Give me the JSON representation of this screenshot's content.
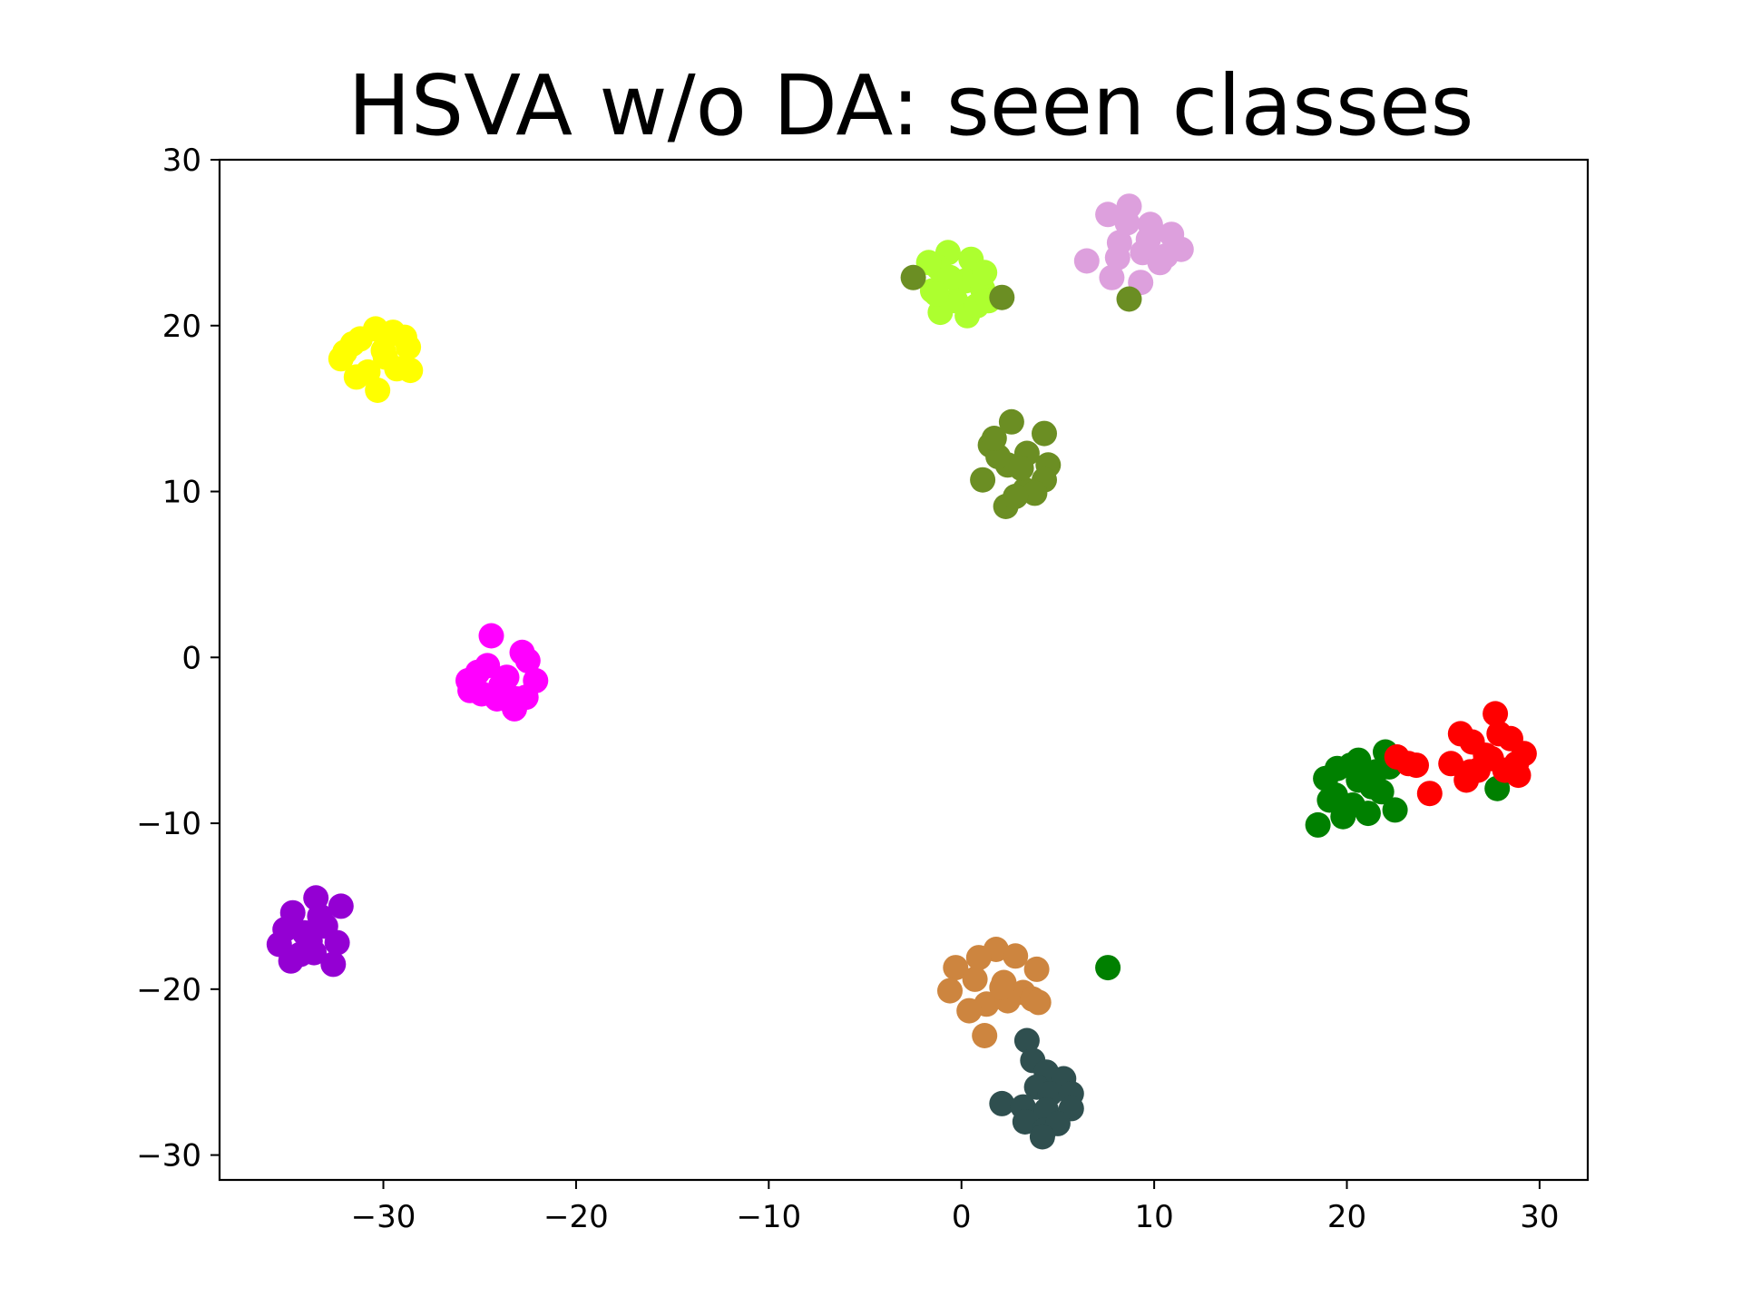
{
  "chart_data": {
    "type": "scatter",
    "title": "HSVA w/o DA: seen classes",
    "xlabel": "",
    "ylabel": "",
    "xlim": [
      -38.5,
      32.5
    ],
    "ylim": [
      -31.5,
      30
    ],
    "xticks": [
      -30,
      -20,
      -10,
      0,
      10,
      20,
      30
    ],
    "yticks": [
      30,
      20,
      10,
      0,
      -10,
      -20,
      -30
    ],
    "xtick_labels": [
      "−30",
      "−20",
      "−10",
      "0",
      "10",
      "20",
      "30"
    ],
    "ytick_labels": [
      "30",
      "20",
      "10",
      "0",
      "−10",
      "−20",
      "−30"
    ],
    "grid": false,
    "legend": "none",
    "series": [
      {
        "color": "#ffff00",
        "points": [
          [
            -30,
            18.5
          ],
          [
            -31.2,
            19.2
          ],
          [
            -29.5,
            19.6
          ],
          [
            -32.2,
            18
          ],
          [
            -28.7,
            18.7
          ],
          [
            -30.8,
            17.2
          ],
          [
            -29.3,
            17.4
          ],
          [
            -31.6,
            18.9
          ],
          [
            -30.4,
            19.8
          ],
          [
            -30.3,
            16.1
          ],
          [
            -28.6,
            17.3
          ],
          [
            -31.4,
            16.9
          ],
          [
            -29.9,
            18.1
          ],
          [
            -32,
            18.4
          ],
          [
            -28.9,
            19.3
          ]
        ]
      },
      {
        "color": "#ff00ff",
        "points": [
          [
            -24.4,
            1.3
          ],
          [
            -23.6,
            -1.2
          ],
          [
            -24.6,
            -0.5
          ],
          [
            -22.5,
            -0.2
          ],
          [
            -25.6,
            -1.4
          ],
          [
            -23.1,
            -2.5
          ],
          [
            -22.1,
            -1.4
          ],
          [
            -24.1,
            -2.5
          ],
          [
            -25.1,
            -0.9
          ],
          [
            -22.8,
            0.3
          ],
          [
            -23.2,
            -3.1
          ],
          [
            -24.9,
            -2.2
          ],
          [
            -23.9,
            -1.7
          ],
          [
            -22.6,
            -2.4
          ],
          [
            -25.5,
            -2
          ]
        ]
      },
      {
        "color": "#9400d3",
        "points": [
          [
            -33.5,
            -14.5
          ],
          [
            -32.2,
            -15
          ],
          [
            -34.7,
            -15.4
          ],
          [
            -33,
            -16.2
          ],
          [
            -34.1,
            -16.6
          ],
          [
            -32.4,
            -17.2
          ],
          [
            -35.4,
            -17.3
          ],
          [
            -33.6,
            -17.8
          ],
          [
            -32.6,
            -18.5
          ],
          [
            -34.3,
            -17.9
          ],
          [
            -35.1,
            -16.4
          ],
          [
            -33.3,
            -15.6
          ],
          [
            -34.8,
            -18.3
          ],
          [
            -33.8,
            -17.1
          ]
        ]
      },
      {
        "color": "#adff2f",
        "points": [
          [
            -0.7,
            24.4
          ],
          [
            0.5,
            24
          ],
          [
            -1.2,
            23.5
          ],
          [
            0.2,
            22.7
          ],
          [
            -1.5,
            22.1
          ],
          [
            1.1,
            22.2
          ],
          [
            -0.3,
            21.5
          ],
          [
            -1.1,
            20.8
          ],
          [
            0.3,
            20.6
          ],
          [
            1.2,
            23.2
          ],
          [
            -1.7,
            23.8
          ],
          [
            0.8,
            21.2
          ],
          [
            -0.6,
            22.9
          ],
          [
            1.4,
            21.5
          ],
          [
            -1.3,
            21.9
          ]
        ]
      },
      {
        "color": "#dda0dd",
        "points": [
          [
            7.6,
            26.7
          ],
          [
            8.7,
            27.2
          ],
          [
            9.8,
            26.1
          ],
          [
            10.9,
            25.5
          ],
          [
            11.4,
            24.6
          ],
          [
            8.2,
            25
          ],
          [
            9.4,
            24.4
          ],
          [
            10.3,
            23.8
          ],
          [
            6.5,
            23.9
          ],
          [
            7.8,
            22.9
          ],
          [
            9.3,
            22.6
          ],
          [
            10.6,
            24.2
          ],
          [
            8.6,
            26.2
          ],
          [
            9.7,
            25.2
          ],
          [
            8.1,
            24.1
          ]
        ]
      },
      {
        "color": "#6b8e23",
        "points": [
          [
            2.6,
            14.2
          ],
          [
            4.3,
            13.5
          ],
          [
            1.5,
            12.8
          ],
          [
            3.4,
            12.3
          ],
          [
            2.4,
            11.6
          ],
          [
            4.5,
            11.6
          ],
          [
            1.1,
            10.7
          ],
          [
            3.3,
            10.1
          ],
          [
            2.3,
            9.1
          ],
          [
            4.3,
            10.7
          ],
          [
            3.1,
            11.4
          ],
          [
            1.9,
            12.1
          ],
          [
            3.8,
            9.9
          ],
          [
            2.8,
            9.7
          ],
          [
            1.7,
            13.2
          ],
          [
            -2.5,
            22.9
          ],
          [
            2.1,
            21.7
          ],
          [
            8.7,
            21.6
          ]
        ]
      },
      {
        "color": "#008000",
        "points": [
          [
            19.5,
            -6.7
          ],
          [
            20.2,
            -6.5
          ],
          [
            21.5,
            -6.9
          ],
          [
            22,
            -5.7
          ],
          [
            20.6,
            -7.4
          ],
          [
            18.9,
            -7.3
          ],
          [
            21.8,
            -8.1
          ],
          [
            19.4,
            -8.3
          ],
          [
            20.3,
            -8.9
          ],
          [
            21.1,
            -9.4
          ],
          [
            22.5,
            -9.2
          ],
          [
            18.5,
            -10.1
          ],
          [
            19.8,
            -9.6
          ],
          [
            20.6,
            -6.2
          ],
          [
            21.3,
            -7.8
          ],
          [
            22.2,
            -6.6
          ],
          [
            19.1,
            -8.6
          ],
          [
            27.8,
            -7.9
          ],
          [
            7.6,
            -18.7
          ]
        ]
      },
      {
        "color": "#ff0000",
        "points": [
          [
            22.6,
            -6
          ],
          [
            23.2,
            -6.4
          ],
          [
            23.6,
            -6.5
          ],
          [
            24.3,
            -8.2
          ],
          [
            25.4,
            -6.4
          ],
          [
            25.9,
            -4.6
          ],
          [
            26.5,
            -5.1
          ],
          [
            26.2,
            -7.4
          ],
          [
            26.8,
            -6.8
          ],
          [
            27.2,
            -5.9
          ],
          [
            27.7,
            -3.4
          ],
          [
            27.9,
            -4.6
          ],
          [
            28.2,
            -6.8
          ],
          [
            28.5,
            -4.9
          ],
          [
            28.9,
            -7.1
          ],
          [
            29.2,
            -5.8
          ],
          [
            28.8,
            -6.4
          ],
          [
            27.5,
            -6.1
          ],
          [
            26.4,
            -6.9
          ]
        ]
      },
      {
        "color": "#cd853f",
        "points": [
          [
            1.8,
            -17.6
          ],
          [
            0.9,
            -18.1
          ],
          [
            2.8,
            -18
          ],
          [
            -0.3,
            -18.7
          ],
          [
            3.9,
            -18.8
          ],
          [
            0.7,
            -19.4
          ],
          [
            2.2,
            -19.6
          ],
          [
            -0.6,
            -20.1
          ],
          [
            3.2,
            -20.2
          ],
          [
            1.3,
            -20.9
          ],
          [
            0.4,
            -21.3
          ],
          [
            2.4,
            -20.7
          ],
          [
            3.7,
            -20.6
          ],
          [
            4,
            -20.8
          ],
          [
            1.2,
            -22.8
          ],
          [
            2.1,
            -19.9
          ]
        ]
      },
      {
        "color": "#2f4f4f",
        "points": [
          [
            3.4,
            -23.1
          ],
          [
            3.7,
            -24.3
          ],
          [
            4.4,
            -25
          ],
          [
            5.3,
            -25.4
          ],
          [
            3.9,
            -25.9
          ],
          [
            4.6,
            -26.3
          ],
          [
            5.7,
            -26.3
          ],
          [
            2.1,
            -26.9
          ],
          [
            3.2,
            -27.1
          ],
          [
            4.4,
            -27.3
          ],
          [
            5.7,
            -27.2
          ],
          [
            3.3,
            -28
          ],
          [
            4.3,
            -28.5
          ],
          [
            5,
            -28.1
          ],
          [
            4.2,
            -28.9
          ]
        ]
      }
    ]
  }
}
